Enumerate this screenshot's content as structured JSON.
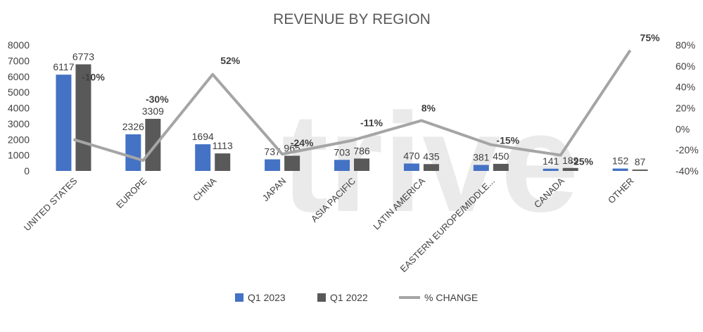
{
  "chart_data": {
    "type": "bar",
    "title": "REVENUE BY REGION",
    "categories": [
      "UNITED STATES",
      "EUROPE",
      "CHINA",
      "JAPAN",
      "ASIA PACIFIC",
      "LATIN AMERICA",
      "EASTERN EUROPE/MIDDLE...",
      "CANADA",
      "OTHER"
    ],
    "series": [
      {
        "name": "Q1 2023",
        "type": "bar",
        "axis": "left",
        "color": "#4472c4",
        "values": [
          6117,
          2326,
          1694,
          737,
          703,
          470,
          381,
          141,
          152
        ]
      },
      {
        "name": "Q1 2022",
        "type": "bar",
        "axis": "left",
        "color": "#595959",
        "values": [
          6773,
          3309,
          1113,
          965,
          786,
          435,
          450,
          189,
          87
        ]
      },
      {
        "name": "% CHANGE",
        "type": "line",
        "axis": "right",
        "color": "#a5a5a5",
        "values": [
          -10,
          -30,
          52,
          -24,
          -11,
          8,
          -15,
          -25,
          75
        ],
        "labels": [
          "-10%",
          "-30%",
          "52%",
          "-24%",
          "-11%",
          "8%",
          "-15%",
          "-25%",
          "75%"
        ]
      }
    ],
    "ylim": [
      0,
      8000
    ],
    "yticks": [
      0,
      1000,
      2000,
      3000,
      4000,
      5000,
      6000,
      7000,
      8000
    ],
    "y2lim": [
      -40,
      80
    ],
    "y2ticks": [
      "-40%",
      "-20%",
      "0%",
      "20%",
      "40%",
      "60%",
      "80%"
    ],
    "grid": false,
    "legend": "bottom",
    "watermark": "trive"
  }
}
